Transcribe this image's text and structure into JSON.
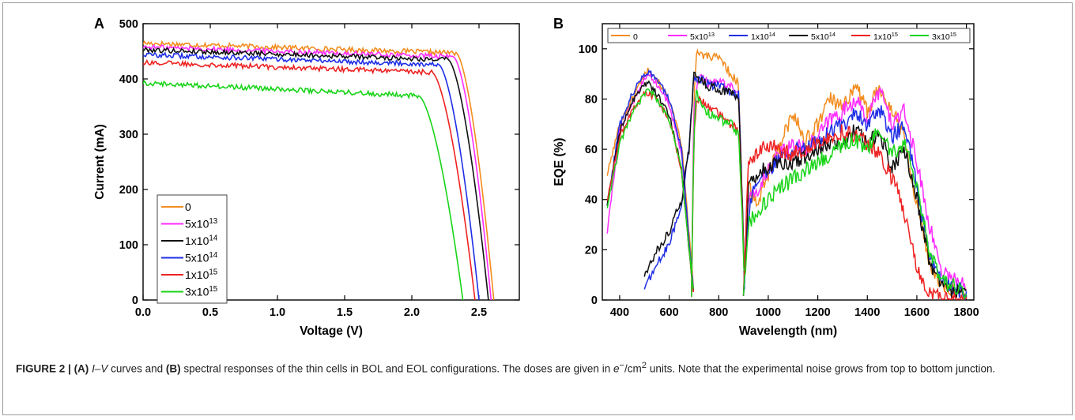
{
  "chart_data": [
    {
      "type": "line",
      "panel_label": "A",
      "xlabel": "Voltage (V)",
      "ylabel": "Current (mA)",
      "xlim": [
        0,
        2.8
      ],
      "ylim": [
        0,
        500
      ],
      "xticks": [
        "0.0",
        "0.5",
        "1.0",
        "1.5",
        "2.0",
        "2.5"
      ],
      "yticks": [
        "0",
        "100",
        "200",
        "300",
        "400",
        "500"
      ],
      "legend_position": "bottom-left",
      "series": [
        {
          "name": "0",
          "color": "#f28c1e",
          "isc": 465,
          "voc": 2.61,
          "knee_v": 2.33
        },
        {
          "name": "5x10^13",
          "color": "#ff2bff",
          "isc": 458,
          "voc": 2.59,
          "knee_v": 2.31
        },
        {
          "name": "1x10^14",
          "color": "#111111",
          "isc": 453,
          "voc": 2.57,
          "knee_v": 2.27
        },
        {
          "name": "5x10^14",
          "color": "#1f2ee6",
          "isc": 444,
          "voc": 2.5,
          "knee_v": 2.2
        },
        {
          "name": "1x10^15",
          "color": "#ee2222",
          "isc": 430,
          "voc": 2.47,
          "knee_v": 2.15
        },
        {
          "name": "3x10^15",
          "color": "#19d419",
          "isc": 393,
          "voc": 2.38,
          "knee_v": 2.05
        }
      ]
    },
    {
      "type": "line",
      "panel_label": "B",
      "xlabel": "Wavelength (nm)",
      "ylabel": "EQE (%)",
      "xlim": [
        330,
        1830
      ],
      "ylim": [
        0,
        110
      ],
      "xticks": [
        "400",
        "600",
        "800",
        "1000",
        "1200",
        "1400",
        "1600",
        "1800"
      ],
      "yticks": [
        "0",
        "20",
        "40",
        "60",
        "80",
        "100"
      ],
      "legend_position": "top",
      "series": [
        {
          "name": "0",
          "color": "#f28c1e",
          "top": [
            [
              350,
              50
            ],
            [
              400,
              70
            ],
            [
              450,
              80
            ],
            [
              500,
              90
            ],
            [
              520,
              92
            ],
            [
              550,
              88
            ],
            [
              600,
              80
            ],
            [
              650,
              62
            ],
            [
              690,
              15
            ],
            [
              700,
              2
            ]
          ],
          "middle": [
            [
              690,
              2
            ],
            [
              700,
              80
            ],
            [
              710,
              98
            ],
            [
              750,
              97
            ],
            [
              800,
              96
            ],
            [
              850,
              90
            ],
            [
              880,
              86
            ],
            [
              895,
              40
            ],
            [
              905,
              2
            ]
          ],
          "bottom": [
            [
              900,
              3
            ],
            [
              920,
              45
            ],
            [
              950,
              38
            ],
            [
              1000,
              50
            ],
            [
              1050,
              62
            ],
            [
              1100,
              75
            ],
            [
              1150,
              63
            ],
            [
              1200,
              70
            ],
            [
              1250,
              80
            ],
            [
              1300,
              76
            ],
            [
              1350,
              86
            ],
            [
              1400,
              75
            ],
            [
              1450,
              85
            ],
            [
              1500,
              76
            ],
            [
              1550,
              65
            ],
            [
              1600,
              38
            ],
            [
              1650,
              15
            ],
            [
              1700,
              5
            ],
            [
              1800,
              2
            ]
          ]
        },
        {
          "name": "5x10^13",
          "color": "#ff2bff",
          "top": [
            [
              350,
              27
            ],
            [
              400,
              68
            ],
            [
              450,
              78
            ],
            [
              500,
              88
            ],
            [
              520,
              90
            ],
            [
              550,
              86
            ],
            [
              600,
              78
            ],
            [
              650,
              58
            ],
            [
              690,
              12
            ],
            [
              700,
              2
            ]
          ],
          "middle": [
            [
              690,
              2
            ],
            [
              700,
              78
            ],
            [
              720,
              90
            ],
            [
              760,
              86
            ],
            [
              800,
              87
            ],
            [
              850,
              85
            ],
            [
              880,
              84
            ],
            [
              895,
              40
            ],
            [
              905,
              2
            ]
          ],
          "bottom": [
            [
              900,
              3
            ],
            [
              920,
              40
            ],
            [
              950,
              42
            ],
            [
              1000,
              52
            ],
            [
              1050,
              58
            ],
            [
              1100,
              62
            ],
            [
              1150,
              60
            ],
            [
              1200,
              65
            ],
            [
              1250,
              72
            ],
            [
              1300,
              75
            ],
            [
              1350,
              80
            ],
            [
              1400,
              72
            ],
            [
              1450,
              84
            ],
            [
              1500,
              70
            ],
            [
              1550,
              75
            ],
            [
              1600,
              55
            ],
            [
              1650,
              30
            ],
            [
              1700,
              12
            ],
            [
              1800,
              5
            ]
          ]
        },
        {
          "name": "1x10^14",
          "color": "#1f2ee6",
          "top": [
            [
              350,
              38
            ],
            [
              400,
              70
            ],
            [
              450,
              82
            ],
            [
              500,
              90
            ],
            [
              520,
              91
            ],
            [
              550,
              88
            ],
            [
              600,
              80
            ],
            [
              650,
              60
            ],
            [
              690,
              12
            ],
            [
              700,
              2
            ]
          ],
          "middle": [
            [
              500,
              5
            ],
            [
              550,
              14
            ],
            [
              600,
              22
            ],
            [
              650,
              38
            ],
            [
              680,
              62
            ],
            [
              700,
              88
            ],
            [
              720,
              88
            ],
            [
              760,
              86
            ],
            [
              800,
              85
            ],
            [
              850,
              83
            ],
            [
              880,
              82
            ],
            [
              895,
              40
            ],
            [
              905,
              2
            ]
          ],
          "bottom": [
            [
              900,
              3
            ],
            [
              920,
              35
            ],
            [
              950,
              48
            ],
            [
              1000,
              50
            ],
            [
              1050,
              58
            ],
            [
              1100,
              60
            ],
            [
              1150,
              62
            ],
            [
              1200,
              62
            ],
            [
              1250,
              67
            ],
            [
              1300,
              70
            ],
            [
              1350,
              75
            ],
            [
              1400,
              70
            ],
            [
              1450,
              76
            ],
            [
              1500,
              65
            ],
            [
              1550,
              70
            ],
            [
              1600,
              45
            ],
            [
              1650,
              18
            ],
            [
              1700,
              7
            ],
            [
              1800,
              3
            ]
          ]
        },
        {
          "name": "5x10^14",
          "color": "#111111",
          "top": [
            [
              350,
              38
            ],
            [
              400,
              67
            ],
            [
              450,
              79
            ],
            [
              500,
              86
            ],
            [
              520,
              86
            ],
            [
              550,
              82
            ],
            [
              600,
              74
            ],
            [
              650,
              52
            ],
            [
              690,
              10
            ],
            [
              700,
              2
            ]
          ],
          "middle": [
            [
              500,
              10
            ],
            [
              550,
              20
            ],
            [
              600,
              27
            ],
            [
              650,
              40
            ],
            [
              680,
              60
            ],
            [
              700,
              91
            ],
            [
              720,
              88
            ],
            [
              760,
              85
            ],
            [
              800,
              84
            ],
            [
              850,
              82
            ],
            [
              880,
              81
            ],
            [
              895,
              40
            ],
            [
              905,
              2
            ]
          ],
          "bottom": [
            [
              900,
              3
            ],
            [
              920,
              45
            ],
            [
              950,
              50
            ],
            [
              1000,
              53
            ],
            [
              1050,
              55
            ],
            [
              1100,
              55
            ],
            [
              1150,
              57
            ],
            [
              1200,
              60
            ],
            [
              1250,
              63
            ],
            [
              1300,
              62
            ],
            [
              1350,
              68
            ],
            [
              1400,
              62
            ],
            [
              1450,
              67
            ],
            [
              1500,
              52
            ],
            [
              1550,
              60
            ],
            [
              1600,
              40
            ],
            [
              1650,
              15
            ],
            [
              1700,
              5
            ],
            [
              1800,
              2
            ]
          ]
        },
        {
          "name": "1x10^15",
          "color": "#ee2222",
          "top": [
            [
              350,
              40
            ],
            [
              400,
              65
            ],
            [
              450,
              75
            ],
            [
              500,
              82
            ],
            [
              520,
              82
            ],
            [
              550,
              80
            ],
            [
              600,
              72
            ],
            [
              650,
              52
            ],
            [
              690,
              10
            ],
            [
              700,
              2
            ]
          ],
          "middle": [
            [
              690,
              2
            ],
            [
              700,
              65
            ],
            [
              710,
              80
            ],
            [
              750,
              78
            ],
            [
              800,
              74
            ],
            [
              850,
              70
            ],
            [
              880,
              68
            ],
            [
              895,
              35
            ],
            [
              905,
              2
            ]
          ],
          "bottom": [
            [
              900,
              3
            ],
            [
              920,
              55
            ],
            [
              950,
              58
            ],
            [
              1000,
              62
            ],
            [
              1050,
              60
            ],
            [
              1100,
              58
            ],
            [
              1150,
              60
            ],
            [
              1200,
              63
            ],
            [
              1250,
              65
            ],
            [
              1300,
              67
            ],
            [
              1350,
              66
            ],
            [
              1400,
              62
            ],
            [
              1450,
              58
            ],
            [
              1500,
              48
            ],
            [
              1520,
              45
            ],
            [
              1550,
              35
            ],
            [
              1600,
              12
            ],
            [
              1650,
              3
            ],
            [
              1700,
              1
            ],
            [
              1800,
              1
            ]
          ]
        },
        {
          "name": "3x10^15",
          "color": "#19d419",
          "top": [
            [
              350,
              37
            ],
            [
              400,
              62
            ],
            [
              450,
              74
            ],
            [
              500,
              82
            ],
            [
              520,
              84
            ],
            [
              550,
              80
            ],
            [
              600,
              72
            ],
            [
              650,
              52
            ],
            [
              690,
              10
            ],
            [
              700,
              2
            ]
          ],
          "middle": [
            [
              690,
              2
            ],
            [
              700,
              68
            ],
            [
              710,
              82
            ],
            [
              750,
              75
            ],
            [
              800,
              72
            ],
            [
              850,
              70
            ],
            [
              880,
              66
            ],
            [
              895,
              32
            ],
            [
              905,
              2
            ]
          ],
          "bottom": [
            [
              900,
              3
            ],
            [
              920,
              30
            ],
            [
              950,
              35
            ],
            [
              1000,
              40
            ],
            [
              1050,
              45
            ],
            [
              1100,
              48
            ],
            [
              1150,
              52
            ],
            [
              1200,
              55
            ],
            [
              1250,
              58
            ],
            [
              1300,
              62
            ],
            [
              1350,
              64
            ],
            [
              1400,
              60
            ],
            [
              1450,
              68
            ],
            [
              1500,
              58
            ],
            [
              1550,
              62
            ],
            [
              1600,
              45
            ],
            [
              1650,
              20
            ],
            [
              1700,
              8
            ],
            [
              1800,
              3
            ]
          ]
        }
      ]
    }
  ],
  "caption": {
    "figure_label": "FIGURE 2 |",
    "part_a": "(A)",
    "iv_text": "I–V",
    "text1": " curves and ",
    "part_b": "(B)",
    "text2": " spectral responses of the thin cells in BOL and EOL configurations. The doses are given in ",
    "unit_e": "e",
    "unit_sup1": "−",
    "unit_rest": "/cm",
    "unit_sup2": "2",
    "text3": " units. Note that the experimental noise grows from top to bottom junction."
  }
}
